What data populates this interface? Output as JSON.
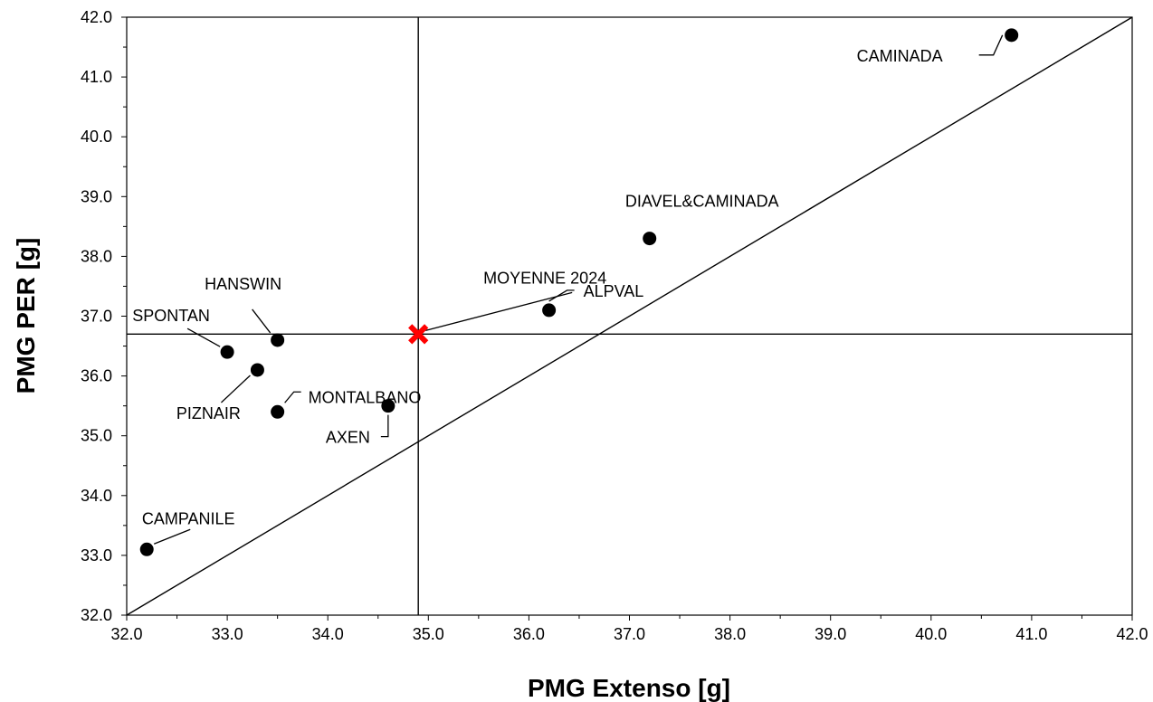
{
  "chart_data": {
    "type": "scatter",
    "title": "",
    "xlabel": "PMG Extenso [g]",
    "ylabel": "PMG PER [g]",
    "xlim": [
      32.0,
      42.0
    ],
    "ylim": [
      32.0,
      42.0
    ],
    "x_ticks": [
      "32.0",
      "33.0",
      "34.0",
      "35.0",
      "36.0",
      "37.0",
      "38.0",
      "39.0",
      "40.0",
      "41.0",
      "42.0"
    ],
    "y_ticks": [
      "32.0",
      "33.0",
      "34.0",
      "35.0",
      "36.0",
      "37.0",
      "38.0",
      "39.0",
      "40.0",
      "41.0",
      "42.0"
    ],
    "grid": false,
    "legend": "none",
    "point_color": "#000000",
    "average_color": "#ff0000",
    "points": [
      {
        "label": "CAMINADA",
        "x": 40.8,
        "y": 41.7
      },
      {
        "label": "DIAVEL&CAMINADA",
        "x": 37.2,
        "y": 38.3
      },
      {
        "label": "ALPVAL",
        "x": 36.2,
        "y": 37.1
      },
      {
        "label": "HANSWIN",
        "x": 33.5,
        "y": 36.6
      },
      {
        "label": "SPONTAN",
        "x": 33.0,
        "y": 36.4
      },
      {
        "label": "PIZNAIR",
        "x": 33.3,
        "y": 36.1
      },
      {
        "label": "MONTALBANO",
        "x": 33.5,
        "y": 35.4
      },
      {
        "label": "AXEN",
        "x": 34.6,
        "y": 35.5
      },
      {
        "label": "CAMPANILE",
        "x": 32.2,
        "y": 33.1
      }
    ],
    "average": {
      "label": "MOYENNE 2024",
      "x": 34.9,
      "y": 36.7
    },
    "reference_lines": [
      {
        "type": "vertical",
        "x": 34.9
      },
      {
        "type": "horizontal",
        "y": 36.7
      },
      {
        "type": "diagonal",
        "from": [
          32.0,
          32.0
        ],
        "to": [
          42.0,
          42.0
        ]
      }
    ]
  }
}
